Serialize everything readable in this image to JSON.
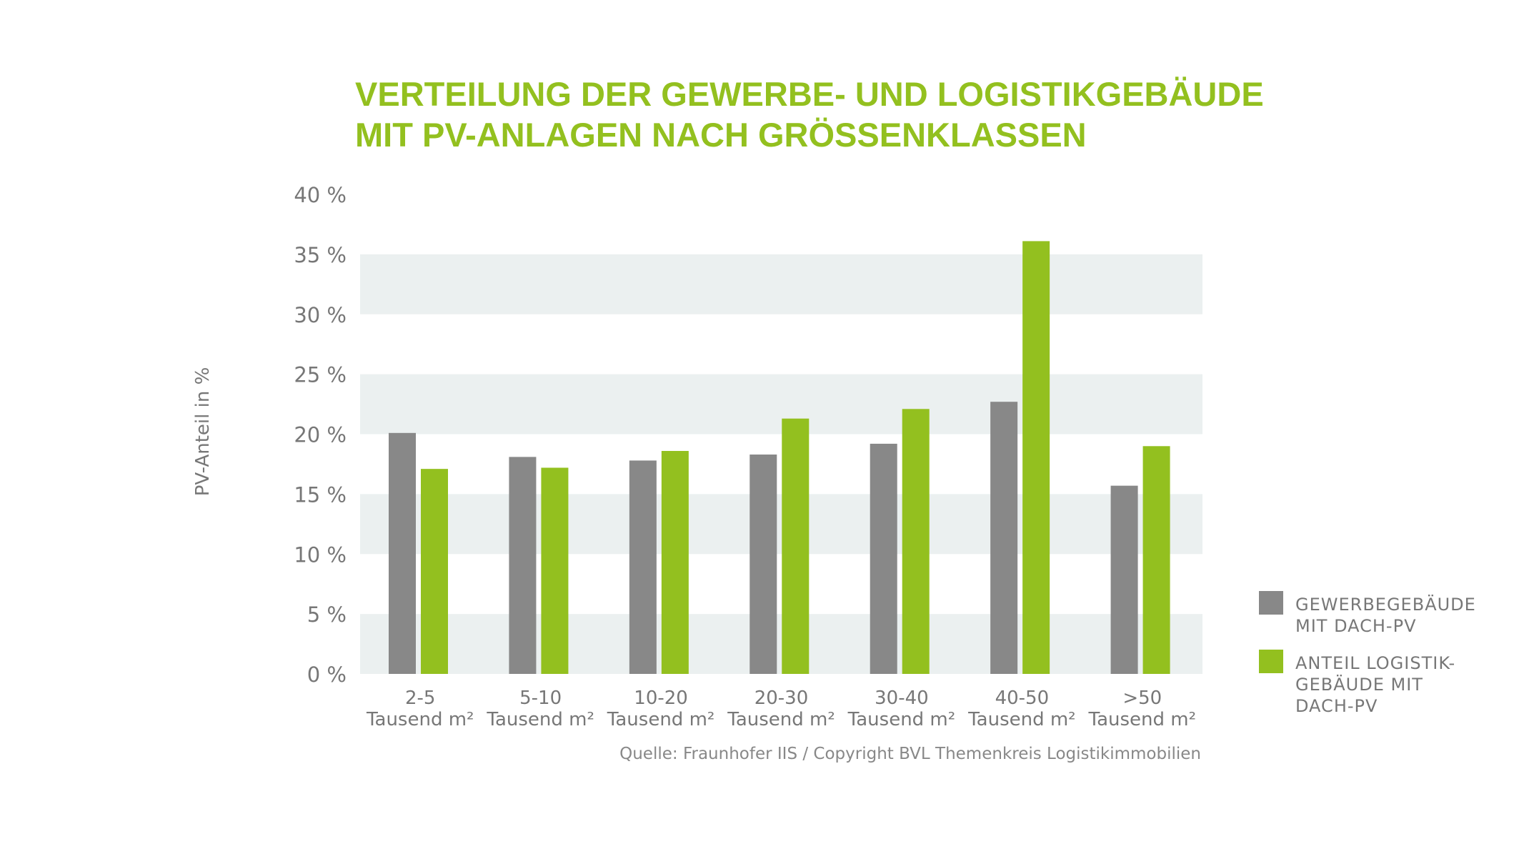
{
  "chart_data": {
    "type": "bar",
    "title": [
      "VERTEILUNG DER GEWERBE- UND LOGISTIKGEBÄUDE",
      "MIT PV-ANLAGEN NACH GRÖSSENKLASSEN"
    ],
    "ylabel": "PV-Anteil in %",
    "ylim": [
      0,
      40
    ],
    "yticks": [
      "0 %",
      "5 %",
      "10 %",
      "15 %",
      "20 %",
      "25 %",
      "30 %",
      "35 %",
      "40 %"
    ],
    "categories": [
      [
        "2-5",
        "Tausend m²"
      ],
      [
        "5-10",
        "Tausend m²"
      ],
      [
        "10-20",
        "Tausend m²"
      ],
      [
        "20-30",
        "Tausend m²"
      ],
      [
        "30-40",
        "Tausend m²"
      ],
      [
        "40-50",
        "Tausend m²"
      ],
      [
        ">50",
        "Tausend m²"
      ]
    ],
    "series": [
      {
        "name": [
          "GEWERBEGEBÄUDE",
          "MIT DACH-PV"
        ],
        "color": "#888888",
        "values": [
          20.1,
          18.1,
          17.8,
          18.3,
          19.2,
          22.7,
          15.7
        ]
      },
      {
        "name": [
          "ANTEIL LOGISTIK-",
          "GEBÄUDE MIT",
          "DACH-PV"
        ],
        "color": "#93c01f",
        "values": [
          17.1,
          17.2,
          18.6,
          21.3,
          22.1,
          36.1,
          19.0
        ]
      }
    ],
    "grid": "alternating horizontal bands",
    "band_color": "#ebf0f0",
    "legend_position": "right",
    "source": "Quelle: Fraunhofer IIS / Copyright BVL Themenkreis Logistikimmobilien"
  }
}
